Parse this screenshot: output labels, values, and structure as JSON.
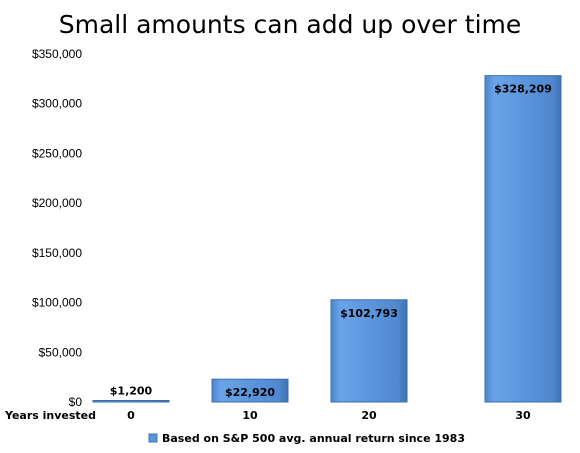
{
  "chart_data": {
    "type": "bar",
    "title": "Small amounts can add up over time",
    "xlabel": "Years invested",
    "ylabel": "",
    "categories": [
      "0",
      "10",
      "20",
      "30"
    ],
    "series": [
      {
        "name": "Based on S&P 500 avg. annual return since 1983",
        "values": [
          1200,
          22920,
          102793,
          328209
        ],
        "labels": [
          "$1,200",
          "$22,920",
          "$102,793",
          "$328,209"
        ],
        "color": "#5b96dc"
      }
    ],
    "ylim": [
      0,
      350000
    ],
    "yticks": [
      0,
      50000,
      100000,
      150000,
      200000,
      250000,
      300000,
      350000
    ],
    "ytick_labels": [
      "$0",
      "$50,000",
      "$100,000",
      "$150,000",
      "$200,000",
      "$250,000",
      "$300,000",
      "$350,000"
    ],
    "grid": false,
    "legend": "bottom"
  }
}
